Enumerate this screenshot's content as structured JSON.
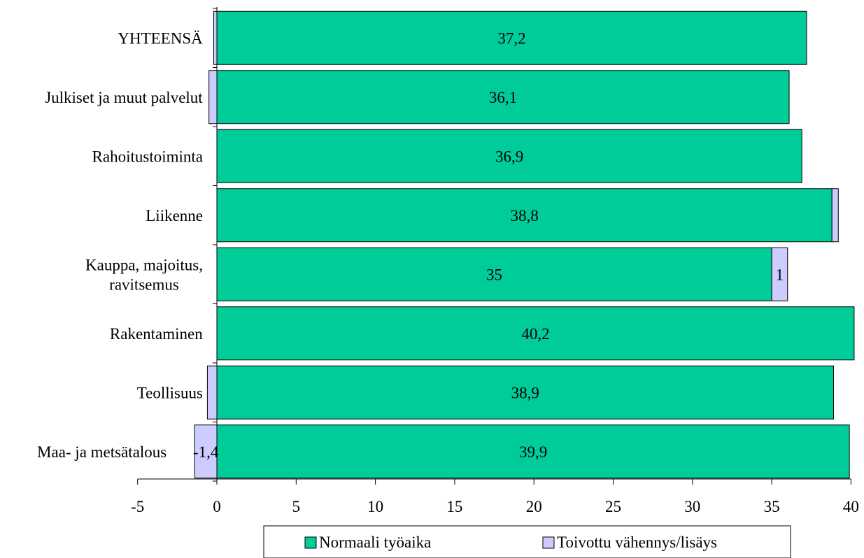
{
  "chart_data": {
    "type": "bar",
    "orientation": "horizontal",
    "stacked": true,
    "categories": [
      [
        "YHTEENSÄ"
      ],
      [
        "Julkiset ja muut palvelut"
      ],
      [
        "Rahoitustoiminta"
      ],
      [
        "Liikenne"
      ],
      [
        "Kauppa, majoitus,",
        "ravitsemus"
      ],
      [
        "Rakentaminen"
      ],
      [
        "Teollisuus"
      ],
      [
        "Maa- ja metsätalous"
      ]
    ],
    "series": [
      {
        "name": "Normaali työaika",
        "color": "#00CC99",
        "values": [
          37.2,
          36.1,
          36.9,
          38.8,
          35,
          40.2,
          38.9,
          39.9
        ],
        "labels": [
          "37,2",
          "36,1",
          "36,9",
          "38,8",
          "35",
          "40,2",
          "38,9",
          "39,9"
        ]
      },
      {
        "name": "Toivottu vähennys/lisäys",
        "color": "#CCCCFF",
        "values": [
          -0.2,
          -0.5,
          0,
          0.4,
          1,
          0,
          -0.6,
          -1.4
        ],
        "labels": [
          "",
          "",
          "",
          "",
          "1",
          "",
          "",
          "-1,4"
        ]
      }
    ],
    "xlim": [
      -5,
      40
    ],
    "xticks": [
      -5,
      0,
      5,
      10,
      15,
      20,
      25,
      30,
      35,
      40
    ],
    "grid": false,
    "legend_position": "bottom"
  }
}
